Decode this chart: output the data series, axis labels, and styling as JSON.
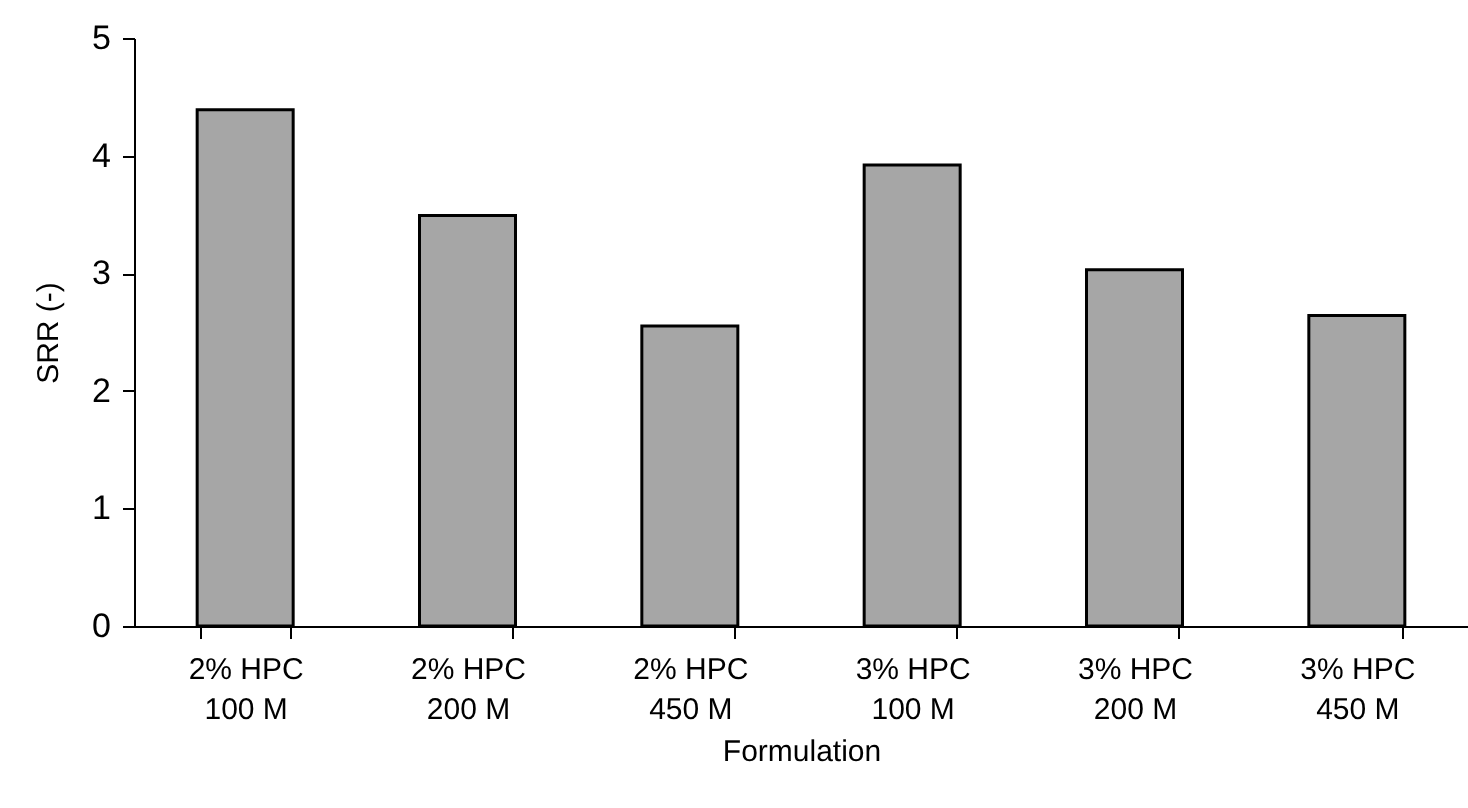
{
  "chart_data": {
    "type": "bar",
    "xlabel": "Formulation",
    "ylabel": "SRR (-)",
    "categories": [
      "2% HPC 100 M",
      "2% HPC 200 M",
      "2% HPC 450 M",
      "3% HPC 100 M",
      "3% HPC 200 M",
      "3% HPC 450 M"
    ],
    "values": [
      4.39,
      3.49,
      2.55,
      3.92,
      3.03,
      2.64
    ],
    "color": "#a6a6a6",
    "ylim": [
      0,
      5
    ],
    "yticks": [
      0,
      1,
      2,
      3,
      4,
      5
    ],
    "grid": false
  }
}
